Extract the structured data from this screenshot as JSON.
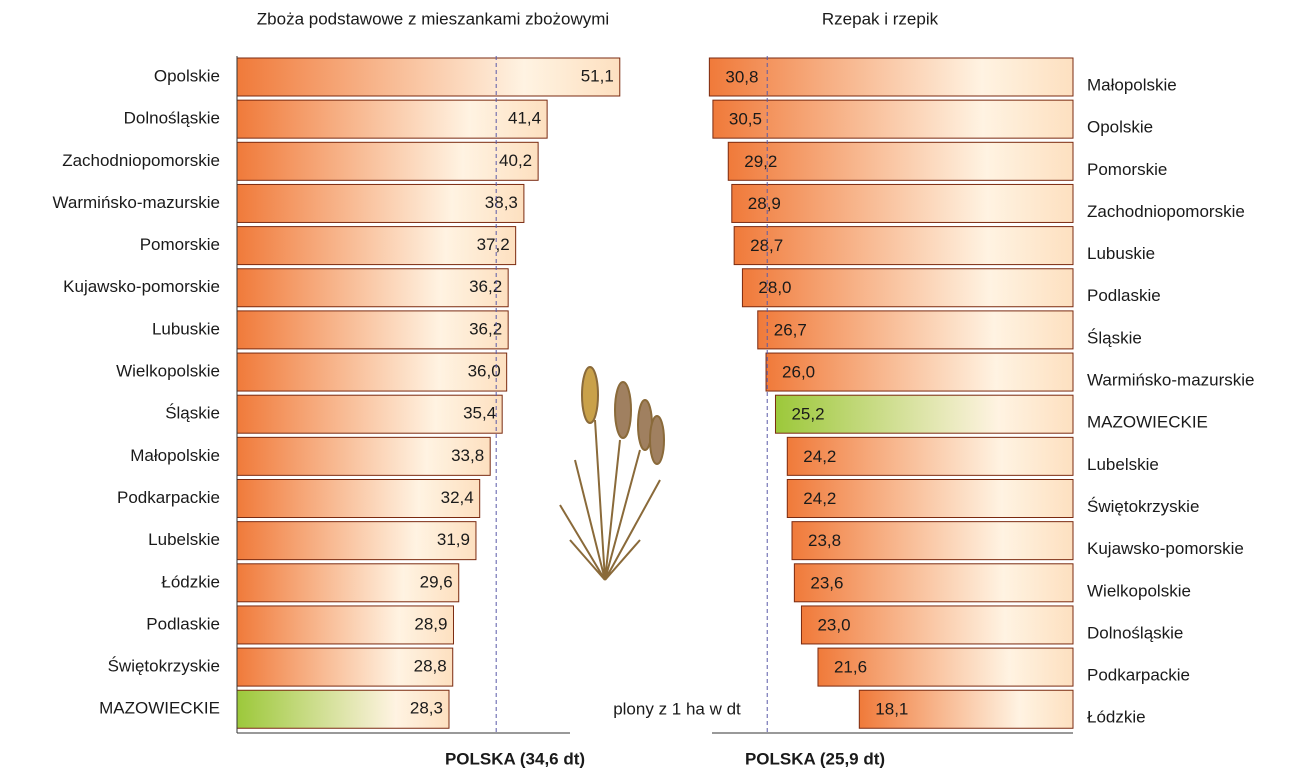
{
  "chart_data": [
    {
      "type": "bar",
      "orientation": "horizontal",
      "x_reversed": false,
      "title": "Zboża podstawowe  z mieszankami zbożowymi",
      "categories": [
        "Opolskie",
        "Dolnośląskie",
        "Zachodniopomorskie",
        "Warmińsko-mazurskie",
        "Pomorskie",
        "Kujawsko-pomorskie",
        "Lubuskie",
        "Wielkopolskie",
        "Śląskie",
        "Małopolskie",
        "Podkarpackie",
        "Lubelskie",
        "Łódzkie",
        "Podlaskie",
        "Świętokrzyskie",
        "MAZOWIECKIE"
      ],
      "values": [
        51.1,
        41.4,
        40.2,
        38.3,
        37.2,
        36.2,
        36.2,
        36.0,
        35.4,
        33.8,
        32.4,
        31.9,
        29.6,
        28.9,
        28.8,
        28.3
      ],
      "value_labels": [
        "51,1",
        "41,4",
        "40,2",
        "38,3",
        "37,2",
        "36,2",
        "36,2",
        "36,0",
        "35,4",
        "33,8",
        "32,4",
        "31,9",
        "29,6",
        "28,9",
        "28,8",
        "28,3"
      ],
      "xlim": [
        0,
        55
      ],
      "color": "#f07a3a",
      "highlight_index": 15,
      "highlight_color": "#9cc83a",
      "reference": {
        "value": 34.6,
        "label": "POLSKA (34,6 dt)"
      }
    },
    {
      "type": "bar",
      "orientation": "horizontal",
      "x_reversed": true,
      "title": "Rzepak i rzepik",
      "categories": [
        "Małopolskie",
        "Opolskie",
        "Pomorskie",
        "Zachodniopomorskie",
        "Lubuskie",
        "Podlaskie",
        "Śląskie",
        "Warmińsko-mazurskie",
        "MAZOWIECKIE",
        "Lubelskie",
        "Świętokrzyskie",
        "Kujawsko-pomorskie",
        "Wielkopolskie",
        "Dolnośląskie",
        "Podkarpackie",
        "Łódzkie"
      ],
      "values": [
        30.8,
        30.5,
        29.2,
        28.9,
        28.7,
        28.0,
        26.7,
        26.0,
        25.2,
        24.2,
        24.2,
        23.8,
        23.6,
        23.0,
        21.6,
        18.1
      ],
      "value_labels": [
        "30,8",
        "30,5",
        "29,2",
        "28,9",
        "28,7",
        "28,0",
        "26,7",
        "26,0",
        "25,2",
        "24,2",
        "24,2",
        "23,8",
        "23,6",
        "23,0",
        "21,6",
        "18,1"
      ],
      "xlim": [
        0,
        31
      ],
      "color": "#f07a3a",
      "highlight_index": 8,
      "highlight_color": "#9cc83a",
      "reference": {
        "value": 25.9,
        "label": "POLSKA (25,9 dt)"
      },
      "annotation": "plony z 1 ha w dt"
    }
  ]
}
